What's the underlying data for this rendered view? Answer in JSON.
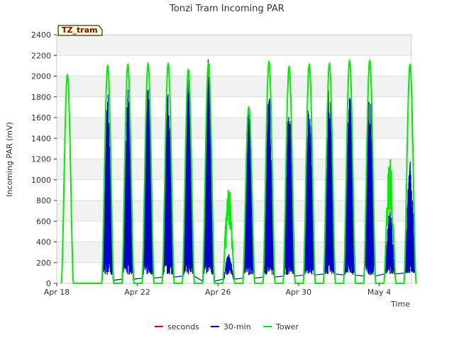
{
  "chart_data": {
    "type": "line",
    "title": "Tonzi Tram Incoming PAR",
    "xlabel": "Time",
    "ylabel": "Incoming PAR (mV)",
    "ylim": [
      0,
      2400
    ],
    "xlim_days": [
      0,
      17.6
    ],
    "yticks": [
      0,
      200,
      400,
      600,
      800,
      1000,
      1200,
      1400,
      1600,
      1800,
      2000,
      2200,
      2400
    ],
    "xticks": [
      {
        "label": "Apr 18",
        "day": 0
      },
      {
        "label": "Apr 22",
        "day": 4
      },
      {
        "label": "Apr 26",
        "day": 8
      },
      {
        "label": "Apr 30",
        "day": 12
      },
      {
        "label": "May 4",
        "day": 16
      }
    ],
    "grid": true,
    "legend_position": "bottom",
    "site_tag": "TZ_tram",
    "series": [
      {
        "name": "seconds",
        "color": "#dd0000",
        "points": []
      },
      {
        "name": "30-min",
        "color": "#0000cc",
        "daily_peaks": [
          null,
          null,
          1900,
          1920,
          1920,
          1900,
          2110,
          2210,
          290,
          1840,
          1870,
          1800,
          1840,
          1940,
          1900,
          1860,
          700,
          1190
        ],
        "night_baseline": [
          null,
          null,
          30,
          40,
          50,
          60,
          70,
          20,
          40,
          50,
          60,
          70,
          80,
          90,
          80,
          70,
          90,
          100
        ]
      },
      {
        "name": "Tower",
        "color": "#00ee00",
        "daily_peaks": [
          2010,
          null,
          2100,
          2110,
          2120,
          2120,
          2060,
          2120,
          990,
          1700,
          2140,
          2090,
          2110,
          2120,
          2150,
          2150,
          1260,
          2110
        ]
      }
    ]
  }
}
